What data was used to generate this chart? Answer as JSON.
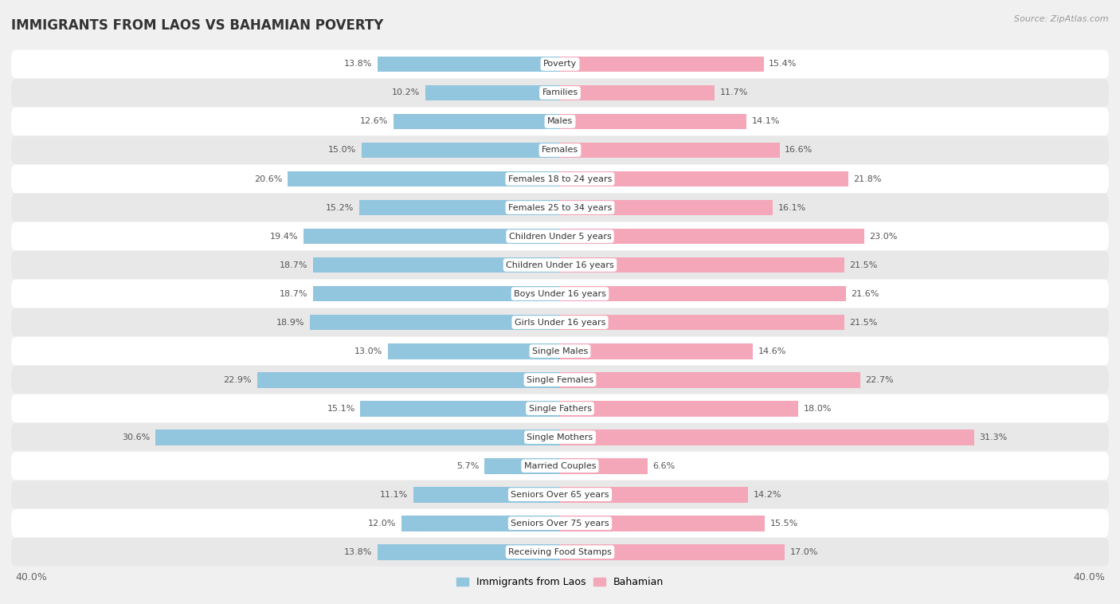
{
  "title": "IMMIGRANTS FROM LAOS VS BAHAMIAN POVERTY",
  "source": "Source: ZipAtlas.com",
  "categories": [
    "Poverty",
    "Families",
    "Males",
    "Females",
    "Females 18 to 24 years",
    "Females 25 to 34 years",
    "Children Under 5 years",
    "Children Under 16 years",
    "Boys Under 16 years",
    "Girls Under 16 years",
    "Single Males",
    "Single Females",
    "Single Fathers",
    "Single Mothers",
    "Married Couples",
    "Seniors Over 65 years",
    "Seniors Over 75 years",
    "Receiving Food Stamps"
  ],
  "left_values": [
    13.8,
    10.2,
    12.6,
    15.0,
    20.6,
    15.2,
    19.4,
    18.7,
    18.7,
    18.9,
    13.0,
    22.9,
    15.1,
    30.6,
    5.7,
    11.1,
    12.0,
    13.8
  ],
  "right_values": [
    15.4,
    11.7,
    14.1,
    16.6,
    21.8,
    16.1,
    23.0,
    21.5,
    21.6,
    21.5,
    14.6,
    22.7,
    18.0,
    31.3,
    6.6,
    14.2,
    15.5,
    17.0
  ],
  "left_color": "#92C5DE",
  "right_color": "#F4A7B9",
  "background_color": "#f0f0f0",
  "row_bg_light": "#ffffff",
  "row_bg_dark": "#e8e8e8",
  "xlim": 40.0,
  "legend_labels": [
    "Immigrants from Laos",
    "Bahamian"
  ],
  "title_fontsize": 12,
  "label_fontsize": 8,
  "tick_fontsize": 9,
  "source_fontsize": 8
}
